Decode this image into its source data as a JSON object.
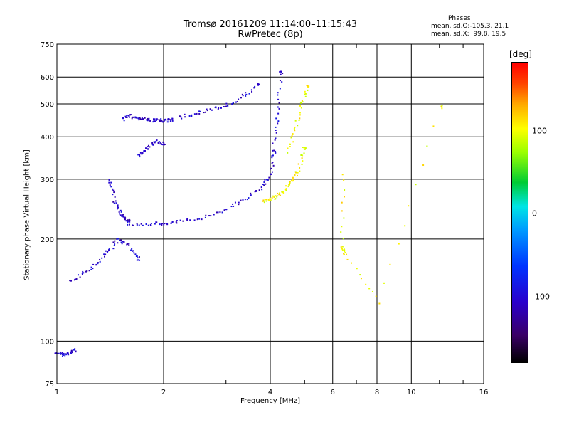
{
  "header": {
    "title_line1": "Tromsø 20161209 11:14:00–11:15:43",
    "title_line2": "RwPretec (8p)"
  },
  "phases": {
    "heading": "Phases",
    "o_line": "mean, sd,O:-105.3, 21.1",
    "x_line": "mean, sd,X:  99.8, 19.5"
  },
  "colorbar": {
    "label": "[deg]",
    "ticks": [
      "100",
      "0",
      "-100"
    ],
    "range": [
      -180,
      180
    ]
  },
  "chart_data": {
    "type": "scatter",
    "xlabel": "Frequency [MHz]",
    "ylabel": "Stationary phase Virtual Height [km]",
    "x_scale": "log",
    "y_scale": "log",
    "xlim": [
      1,
      16
    ],
    "ylim": [
      75,
      750
    ],
    "xticks": [
      1,
      2,
      4,
      6,
      8,
      10,
      16
    ],
    "yticks": [
      75,
      100,
      200,
      300,
      400,
      500,
      600,
      750
    ],
    "grid": true,
    "traces": [
      {
        "mode": "O",
        "phase_deg": -105,
        "segments": [
          {
            "x": [
              1.0,
              1.04,
              1.08,
              1.12
            ],
            "y": [
              93,
              91,
              92,
              94
            ]
          },
          {
            "x": [
              1.1,
              1.2,
              1.3,
              1.4,
              1.5,
              1.6,
              1.7
            ],
            "y": [
              150,
              160,
              170,
              185,
              200,
              190,
              175
            ]
          },
          {
            "x": [
              1.4,
              1.45,
              1.5,
              1.55,
              1.6
            ],
            "y": [
              300,
              260,
              240,
              230,
              225
            ]
          },
          {
            "x": [
              1.6,
              1.8,
              2.0,
              2.2,
              2.6,
              3.0,
              3.4,
              3.8,
              4.0,
              4.1
            ],
            "y": [
              222,
              221,
              222,
              224,
              232,
              245,
              262,
              285,
              310,
              360
            ]
          },
          {
            "x": [
              4.1,
              4.2,
              4.3
            ],
            "y": [
              380,
              480,
              620
            ]
          },
          {
            "x": [
              1.55,
              1.6,
              1.7,
              1.8,
              1.9,
              2.0,
              2.1
            ],
            "y": [
              450,
              460,
              455,
              448,
              446,
              447,
              448
            ]
          },
          {
            "x": [
              2.2,
              2.5,
              2.8,
              3.1,
              3.4,
              3.7
            ],
            "y": [
              455,
              470,
              485,
              500,
              530,
              570
            ]
          },
          {
            "x": [
              1.7,
              1.8,
              1.9,
              2.0
            ],
            "y": [
              350,
              370,
              390,
              380
            ]
          }
        ]
      },
      {
        "mode": "X",
        "phase_deg": 100,
        "segments": [
          {
            "x": [
              3.8,
              4.0,
              4.2,
              4.4,
              4.6,
              4.8,
              5.0
            ],
            "y": [
              258,
              262,
              268,
              278,
              295,
              320,
              370
            ]
          },
          {
            "x": [
              4.5,
              4.7,
              4.9,
              5.1
            ],
            "y": [
              360,
              420,
              500,
              560
            ]
          },
          {
            "x": [
              6.4,
              6.4,
              6.5,
              8.1,
              12.1
            ],
            "y": [
              310,
              190,
              180,
              130,
              490
            ]
          }
        ]
      }
    ]
  }
}
